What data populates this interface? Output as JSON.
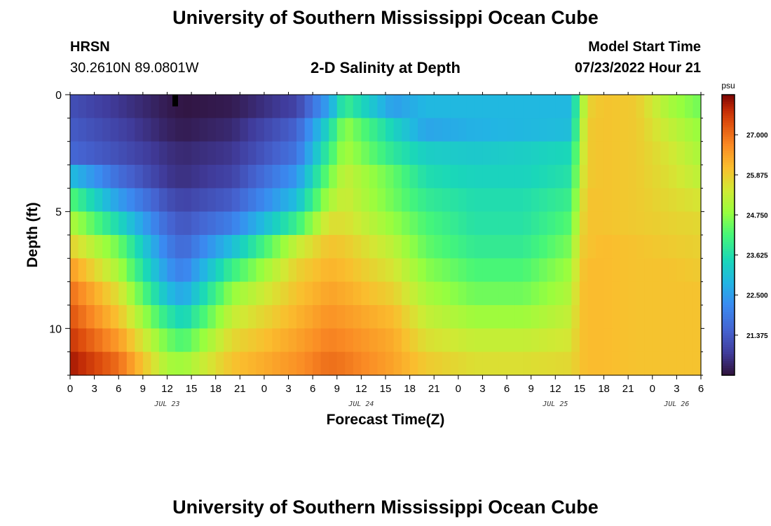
{
  "header": {
    "title": "University of Southern Mississippi Ocean Cube",
    "station": "HRSN",
    "coordinates": "30.2610N  89.0801W",
    "plot_title": "2-D Salinity at Depth",
    "model_start_label": "Model Start Time",
    "model_start_value": "07/23/2022 Hour 21"
  },
  "footer": {
    "title": "University of Southern Mississippi Ocean Cube"
  },
  "chart_data": {
    "type": "heatmap",
    "title": "2-D Salinity at Depth",
    "xlabel": "Forecast Time(Z)",
    "ylabel": "Depth (ft)",
    "x_tick_labels": [
      "0",
      "3",
      "6",
      "9",
      "12",
      "15",
      "18",
      "21",
      "0",
      "3",
      "6",
      "9",
      "12",
      "15",
      "18",
      "21",
      "0",
      "3",
      "6",
      "9",
      "12",
      "15",
      "18",
      "21",
      "0",
      "3",
      "6"
    ],
    "x_range_hours": [
      0,
      78
    ],
    "date_labels": [
      {
        "label": "JUL 23",
        "hour": 12
      },
      {
        "label": "JUL 24",
        "hour": 36
      },
      {
        "label": "JUL 25",
        "hour": 60
      },
      {
        "label": "JUL 26",
        "hour": 75
      }
    ],
    "y_tick_labels": [
      "0",
      "5",
      "10"
    ],
    "y_range_ft": [
      0,
      12
    ],
    "depth_layers": 12,
    "colorbar": {
      "unit": "psu",
      "tick_labels": [
        "27.000",
        "25.875",
        "24.750",
        "23.625",
        "22.500",
        "21.375"
      ],
      "tick_values": [
        27.0,
        25.875,
        24.75,
        23.625,
        22.5,
        21.375
      ],
      "range": [
        20.25,
        28.125
      ]
    },
    "salinity_keyframes": {
      "hours": [
        0,
        6,
        12,
        14,
        20,
        28,
        32,
        34,
        40,
        44,
        50,
        56,
        62,
        63,
        64,
        66,
        70,
        74,
        78
      ],
      "layers": [
        [
          21.2,
          20.8,
          20.4,
          20.3,
          20.4,
          21.0,
          22.6,
          24.0,
          22.5,
          22.9,
          22.9,
          22.9,
          22.9,
          24.5,
          25.8,
          26.0,
          25.9,
          25.0,
          24.5
        ],
        [
          21.4,
          21.0,
          20.5,
          20.4,
          20.6,
          21.5,
          23.5,
          24.8,
          23.4,
          22.6,
          22.8,
          22.9,
          23.0,
          24.8,
          25.9,
          26.0,
          25.9,
          25.3,
          24.8
        ],
        [
          21.6,
          21.2,
          20.7,
          20.6,
          20.8,
          21.8,
          24.0,
          25.0,
          23.8,
          23.3,
          23.2,
          23.3,
          23.5,
          25.0,
          25.9,
          26.0,
          25.9,
          25.5,
          25.0
        ],
        [
          23.0,
          21.7,
          20.8,
          20.7,
          21.0,
          22.4,
          24.5,
          25.3,
          24.4,
          23.6,
          23.4,
          23.4,
          23.7,
          25.2,
          25.9,
          26.0,
          25.9,
          25.6,
          25.2
        ],
        [
          24.3,
          22.5,
          21.2,
          21.0,
          21.4,
          23.0,
          25.0,
          25.4,
          24.5,
          23.9,
          23.6,
          23.6,
          24.0,
          25.4,
          26.0,
          26.0,
          25.9,
          25.7,
          25.5
        ],
        [
          25.1,
          23.5,
          21.6,
          21.3,
          22.0,
          24.0,
          25.6,
          25.6,
          24.8,
          24.2,
          23.7,
          23.7,
          24.3,
          25.6,
          26.0,
          26.0,
          25.9,
          25.8,
          25.7
        ],
        [
          25.8,
          24.5,
          22.0,
          21.6,
          23.0,
          25.3,
          26.0,
          25.9,
          25.2,
          24.4,
          23.9,
          23.9,
          24.6,
          25.8,
          26.0,
          26.1,
          26.0,
          25.9,
          25.8
        ],
        [
          26.5,
          25.0,
          22.4,
          22.0,
          24.0,
          25.8,
          26.2,
          26.1,
          25.5,
          24.7,
          24.2,
          24.2,
          24.9,
          25.9,
          26.1,
          26.1,
          26.0,
          26.0,
          25.9
        ],
        [
          27.0,
          25.6,
          23.0,
          22.6,
          24.8,
          26.0,
          26.4,
          26.3,
          25.8,
          25.0,
          24.5,
          24.5,
          25.1,
          26.0,
          26.1,
          26.1,
          26.0,
          26.0,
          26.0
        ],
        [
          27.3,
          26.0,
          23.8,
          23.4,
          25.3,
          26.2,
          26.6,
          26.5,
          26.1,
          25.3,
          24.9,
          24.9,
          25.3,
          26.0,
          26.1,
          26.1,
          26.0,
          26.0,
          26.0
        ],
        [
          27.6,
          26.5,
          24.5,
          24.2,
          25.7,
          26.4,
          26.8,
          26.7,
          26.3,
          25.6,
          25.3,
          25.3,
          25.5,
          26.0,
          26.1,
          26.1,
          26.0,
          26.0,
          26.0
        ],
        [
          27.9,
          27.0,
          25.0,
          24.9,
          26.0,
          26.6,
          27.0,
          26.9,
          26.4,
          25.9,
          25.6,
          25.6,
          25.7,
          26.0,
          26.1,
          26.1,
          26.0,
          26.0,
          26.0
        ]
      ]
    },
    "marker": {
      "hour": 13,
      "depth_layer": 0
    }
  }
}
